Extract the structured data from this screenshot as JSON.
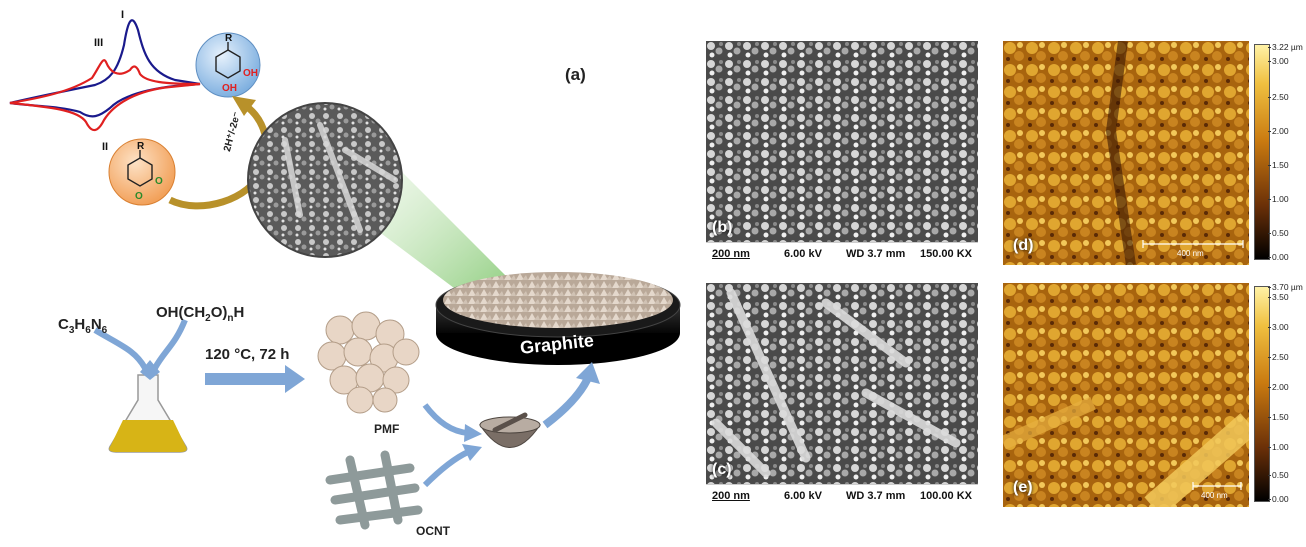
{
  "scheme": {
    "panel_label": "(a)",
    "cv_peaks": {
      "peak_1": "I",
      "peak_2": "II",
      "peak_3": "III"
    },
    "catechol": {
      "substituent": "R",
      "oh": "OH"
    },
    "quinone": {
      "substituent": "R",
      "o": "O"
    },
    "redox_label": "2H⁺/-2e⁻",
    "reagent_1": "C3H6N6",
    "reagent_1_parts": [
      "C",
      "3",
      "H",
      "6",
      "N",
      "6"
    ],
    "reagent_2_parts": [
      "OH(CH",
      "2",
      "O)",
      "n",
      "H"
    ],
    "conditions": "120 °C, 72 h",
    "pmf_label": "PMF",
    "ocnt_label": "OCNT",
    "electrode_label": "Graphite",
    "colors": {
      "arrow_blue": "#7fa6d6",
      "arrow_gold": "#b8912a",
      "cv_red": "#e02020",
      "cv_blue": "#1a1a8c",
      "catechol_circle": "#7fb0e0",
      "quinone_circle": "#f2a15a",
      "liquid": "#d7b416"
    }
  },
  "sem_b": {
    "panel_label": "(b)",
    "scale": "200 nm",
    "voltage": "6.00 kV",
    "wd": "WD 3.7 mm",
    "mag": "150.00 KX"
  },
  "sem_c": {
    "panel_label": "(c)",
    "scale": "200 nm",
    "voltage": "6.00 kV",
    "wd": "WD 3.7 mm",
    "mag": "100.00 KX"
  },
  "afm_d": {
    "panel_label": "(d)",
    "scale": "400 nm",
    "colorbar_max": "3.22 µm",
    "ticks": [
      "3.00",
      "2.50",
      "2.00",
      "1.50",
      "1.00",
      "0.50",
      "0.00"
    ]
  },
  "afm_e": {
    "panel_label": "(e)",
    "scale": "400 nm",
    "colorbar_max": "3.70 µm",
    "ticks": [
      "3.50",
      "3.00",
      "2.50",
      "2.00",
      "1.50",
      "1.00",
      "0.50",
      "0.00"
    ]
  }
}
